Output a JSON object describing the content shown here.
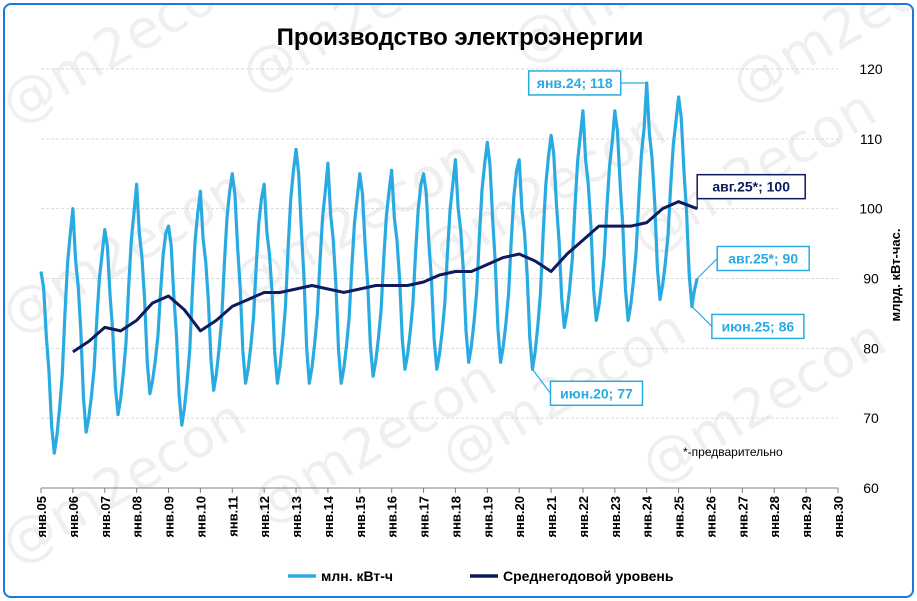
{
  "chart_data": {
    "type": "line",
    "title": "Производство электроэнергии",
    "ylabel": "млрд. кВт-час.",
    "ylim": [
      60,
      120
    ],
    "y_ticks": [
      60,
      70,
      80,
      90,
      100,
      110,
      120
    ],
    "x_range": [
      "янв.05",
      "янв.30"
    ],
    "x_tick_labels": [
      "янв.05",
      "янв.06",
      "янв.07",
      "янв.08",
      "янв.09",
      "янв.10",
      "янв.11",
      "янв.12",
      "янв.13",
      "янв.14",
      "янв.15",
      "янв.16",
      "янв.17",
      "янв.18",
      "янв.19",
      "янв.20",
      "янв.21",
      "янв.22",
      "янв.23",
      "янв.24",
      "янв.25",
      "янв.26",
      "янв.27",
      "янв.28",
      "янв.29",
      "янв.30"
    ],
    "grid": "horizontal",
    "legend_position": "bottom",
    "watermark": "@m2econ",
    "note": "*-предварительно",
    "series": [
      {
        "name": "млн. кВт-ч",
        "color": "#29abe2",
        "peaks": [
          {
            "year": 2005,
            "jan": 91,
            "jun": 65,
            "dec": 97
          },
          {
            "year": 2006,
            "jan": 100,
            "jun": 68,
            "dec": 94
          },
          {
            "year": 2007,
            "jan": 97,
            "jun": 70.5,
            "dec": 100
          },
          {
            "year": 2008,
            "jan": 103.5,
            "jun": 73.5,
            "dec": 97
          },
          {
            "year": 2009,
            "jan": 97.5,
            "jun": 69,
            "dec": 100
          },
          {
            "year": 2010,
            "jan": 102.5,
            "jun": 74,
            "dec": 103
          },
          {
            "year": 2011,
            "jan": 105,
            "jun": 75,
            "dec": 102
          },
          {
            "year": 2012,
            "jan": 103.5,
            "jun": 75,
            "dec": 106
          },
          {
            "year": 2013,
            "jan": 108.5,
            "jun": 75,
            "dec": 103
          },
          {
            "year": 2014,
            "jan": 106.5,
            "jun": 75,
            "dec": 102
          },
          {
            "year": 2015,
            "jan": 105,
            "jun": 76,
            "dec": 103
          },
          {
            "year": 2016,
            "jan": 105.5,
            "jun": 77,
            "dec": 104
          },
          {
            "year": 2017,
            "jan": 105,
            "jun": 77,
            "dec": 104
          },
          {
            "year": 2018,
            "jan": 107,
            "jun": 78,
            "dec": 107
          },
          {
            "year": 2019,
            "jan": 109.5,
            "jun": 78,
            "dec": 106
          },
          {
            "year": 2020,
            "jan": 107,
            "jun": 77,
            "dec": 108
          },
          {
            "year": 2021,
            "jan": 110.5,
            "jun": 83,
            "dec": 111
          },
          {
            "year": 2022,
            "jan": 114,
            "jun": 84,
            "dec": 110
          },
          {
            "year": 2023,
            "jan": 114,
            "jun": 84,
            "dec": 112
          },
          {
            "year": 2024,
            "jan": 118,
            "jun": 87,
            "dec": 113
          },
          {
            "year": 2025,
            "jan": 116,
            "jun": 86,
            "aug": 90
          }
        ]
      },
      {
        "name": "Среднегодовой уровень",
        "color": "#0d1b5e",
        "points": [
          [
            "2006-01",
            79.5
          ],
          [
            "2006-07",
            81
          ],
          [
            "2007-01",
            83
          ],
          [
            "2007-07",
            82.5
          ],
          [
            "2008-01",
            84
          ],
          [
            "2008-07",
            86.5
          ],
          [
            "2009-01",
            87.5
          ],
          [
            "2009-07",
            85.5
          ],
          [
            "2010-01",
            82.5
          ],
          [
            "2010-07",
            84
          ],
          [
            "2011-01",
            86
          ],
          [
            "2011-07",
            87
          ],
          [
            "2012-01",
            88
          ],
          [
            "2012-07",
            88
          ],
          [
            "2013-01",
            88.5
          ],
          [
            "2013-07",
            89
          ],
          [
            "2014-01",
            88.5
          ],
          [
            "2014-07",
            88
          ],
          [
            "2015-01",
            88.5
          ],
          [
            "2015-07",
            89
          ],
          [
            "2016-01",
            89
          ],
          [
            "2016-07",
            89
          ],
          [
            "2017-01",
            89.5
          ],
          [
            "2017-07",
            90.5
          ],
          [
            "2018-01",
            91
          ],
          [
            "2018-07",
            91
          ],
          [
            "2019-01",
            92
          ],
          [
            "2019-07",
            93
          ],
          [
            "2020-01",
            93.5
          ],
          [
            "2020-07",
            92.5
          ],
          [
            "2021-01",
            91
          ],
          [
            "2021-07",
            93.5
          ],
          [
            "2022-01",
            95.5
          ],
          [
            "2022-07",
            97.5
          ],
          [
            "2023-01",
            97.5
          ],
          [
            "2023-07",
            97.5
          ],
          [
            "2024-01",
            98
          ],
          [
            "2024-07",
            100
          ],
          [
            "2025-01",
            101
          ],
          [
            "2025-08",
            100
          ]
        ]
      }
    ],
    "annotations": [
      {
        "text": "янв.24; 118",
        "date": "2024-01",
        "value": 118,
        "series": "млн. кВт-ч"
      },
      {
        "text": "авг.25*;   100",
        "date": "2025-08",
        "value": 100,
        "series": "Среднегодовой уровень"
      },
      {
        "text": "авг.25*; 90",
        "date": "2025-08",
        "value": 90,
        "series": "млн. кВт-ч"
      },
      {
        "text": "июн.25; 86",
        "date": "2025-06",
        "value": 86,
        "series": "млн. кВт-ч"
      },
      {
        "text": "июн.20; 77",
        "date": "2020-06",
        "value": 77,
        "series": "млн. кВт-ч"
      }
    ]
  }
}
